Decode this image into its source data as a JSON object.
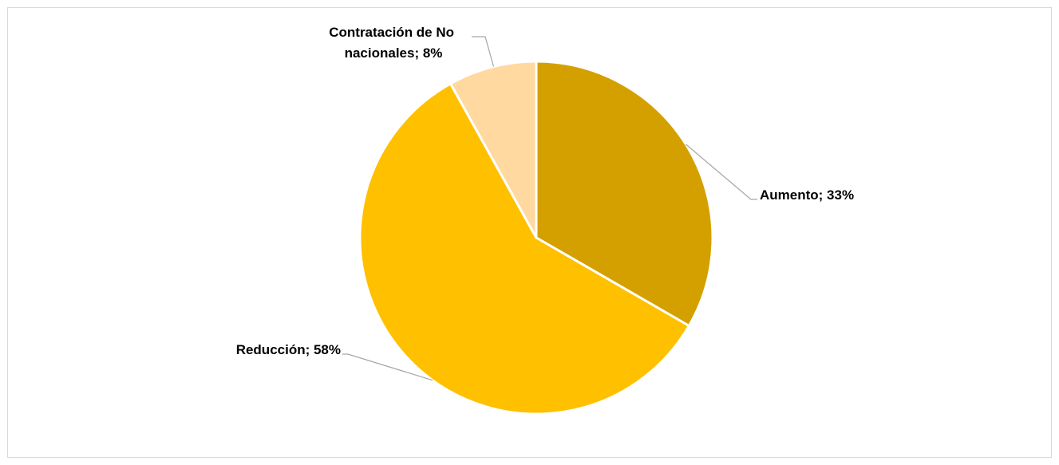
{
  "chart_data": {
    "type": "pie",
    "categories": [
      "Aumento",
      "Reducción",
      "Contratación de No nacionales"
    ],
    "values": [
      33,
      58,
      8
    ],
    "unit": "%",
    "data_labels": [
      {
        "lines": [
          "Aumento; 33%"
        ]
      },
      {
        "lines": [
          "Reducción; 58%"
        ]
      },
      {
        "lines": [
          "Contratación de No",
          "nacionales; 8%"
        ]
      }
    ],
    "colors": [
      "#D4A000",
      "#FFC000",
      "#FFD9A0"
    ],
    "slice_border_color": "#ffffff",
    "leader_line_color": "#a6a6a6",
    "start_angle": "12 o'clock",
    "direction": "clockwise",
    "legend": "none"
  }
}
